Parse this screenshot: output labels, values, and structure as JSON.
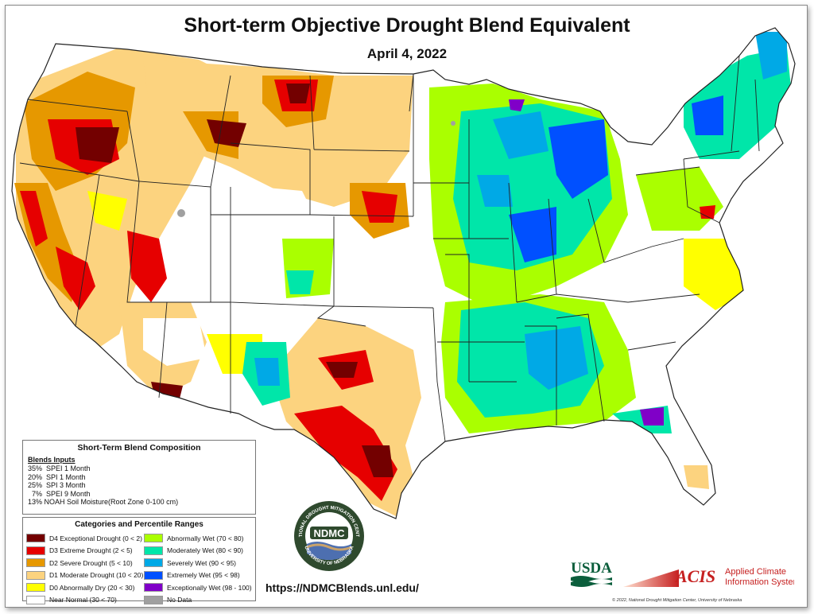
{
  "title": "Short-term Objective Drought Blend Equivalent",
  "subtitle": "April 4, 2022",
  "composition": {
    "heading": "Short-Term Blend Composition",
    "inputs_heading": "Blends Inputs",
    "inputs": [
      "35%  SPEI 1 Month",
      "20%  SPI 1 Month",
      "25%  SPI 3 Month",
      "  7%  SPEI 9 Month",
      "13% NOAH Soil Moisture(Root Zone 0-100 cm)"
    ]
  },
  "categories": {
    "heading": "Categories and Percentile Ranges",
    "left": [
      {
        "label": "D4 Exceptional Drought (0 < 2)",
        "color": "#730000"
      },
      {
        "label": "D3 Extreme Drought (2 < 5)",
        "color": "#e60000"
      },
      {
        "label": "D2 Severe Drought (5 < 10)",
        "color": "#e69800"
      },
      {
        "label": "D1 Moderate Drought (10 < 20)",
        "color": "#fcd37f"
      },
      {
        "label": "D0 Abnormally Dry (20 < 30)",
        "color": "#ffff00"
      },
      {
        "label": "Near Normal (30 < 70)",
        "color": "#ffffff"
      }
    ],
    "right": [
      {
        "label": "Abnormally Wet (70 < 80)",
        "color": "#aaff00"
      },
      {
        "label": "Moderately Wet (80 < 90)",
        "color": "#00e6a9"
      },
      {
        "label": "Severely Wet (90 < 95)",
        "color": "#00a9e6"
      },
      {
        "label": "Extremely Wet (95 < 98)",
        "color": "#0050ff"
      },
      {
        "label": "Exceptionally Wet (98 - 100)",
        "color": "#8000c8"
      },
      {
        "label": "No Data",
        "color": "#a0a0a0"
      }
    ]
  },
  "logos": {
    "ndmc_text": "NDMC",
    "ndmc_ring_top": "NATIONAL DROUGHT MITIGATION CENTER",
    "ndmc_ring_bottom": "UNIVERSITY OF NEBRASKA",
    "usda": "USDA",
    "acis": "ACIS",
    "acis_line1": "Applied Climate",
    "acis_line2": "Information System"
  },
  "url": "https://NDMCBlends.unl.edu/",
  "copyright": "© 2022, National Drought Mitigation Center, University of Nebraska"
}
